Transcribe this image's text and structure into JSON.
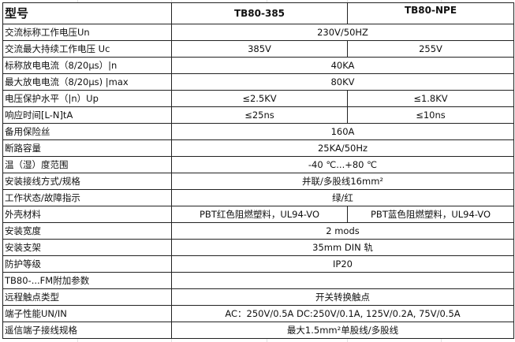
{
  "header": {
    "label": "型号",
    "models": [
      "TB80-385",
      "TB80-NPE"
    ]
  },
  "rows": [
    {
      "label": "交流标称工作电压Un",
      "values": [
        "230V/50HZ"
      ]
    },
    {
      "label": "交流最大持续工作电压  Uc",
      "values": [
        "385V",
        "255V"
      ]
    },
    {
      "label": "标称放电电流（8/20μs）|n",
      "values": [
        "40KA"
      ]
    },
    {
      "label": "最大放电电流（8/20μs) |max",
      "values": [
        "80KV"
      ]
    },
    {
      "label": "电压保护水平（|n）Up",
      "values": [
        "≤2.5KV",
        "≤1.8KV"
      ]
    },
    {
      "label": "响应时间[L-N]tA",
      "values": [
        "≤25ns",
        "≤10ns"
      ]
    },
    {
      "label": "备用保险丝",
      "values": [
        "160A"
      ]
    },
    {
      "label": "断路容量",
      "values": [
        "25KA/50Hz"
      ]
    },
    {
      "label": "温（湿）度范围",
      "values": [
        "-40 ℃...+80 ℃"
      ]
    },
    {
      "label": "安装接线方式/规格",
      "values": [
        "并联/多股线16mm²"
      ]
    },
    {
      "label": "工作状态/故障指示",
      "values": [
        "绿/红"
      ]
    },
    {
      "label": "外壳材料",
      "values": [
        "PBT红色阻燃塑料，UL94-VO",
        "PBT蓝色阻燃塑料，UL94-VO"
      ]
    },
    {
      "label": "安装宽度",
      "values": [
        "2 mods"
      ]
    },
    {
      "label": "安装支架",
      "values": [
        "35mm DIN 轨"
      ]
    },
    {
      "label": "防护等级",
      "values": [
        "IP20"
      ]
    },
    {
      "label": "TB80-...FM附加参数",
      "values": [
        ""
      ]
    },
    {
      "label": "远程触点类型",
      "values": [
        "开关转换触点"
      ]
    },
    {
      "label": "端子性能UN/IN",
      "values": [
        "AC：250V/0.5A  DC:250V/0.1A,  125V/0.2A,  75V/0.5A"
      ]
    },
    {
      "label": "遥信端子接线规格",
      "values": [
        "最大1.5mm²单股线/多股线"
      ]
    }
  ]
}
